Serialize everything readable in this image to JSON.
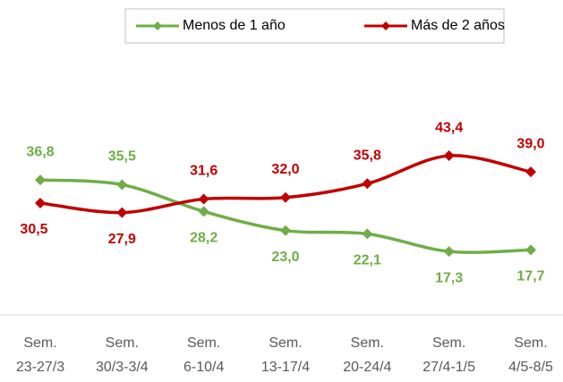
{
  "chart_data": {
    "type": "line",
    "categories": [
      "Sem. 23-27/3",
      "Sem. 30/3-3/4",
      "Sem. 6-10/4",
      "Sem. 13-17/4",
      "Sem. 20-24/4",
      "Sem. 27/4-1/5",
      "Sem. 4/5-8/5"
    ],
    "series": [
      {
        "name": "Menos de 1 año",
        "color": "#70ad47",
        "values": [
          36.8,
          35.5,
          28.2,
          23.0,
          22.1,
          17.3,
          17.7
        ],
        "value_labels": [
          "36,8",
          "35,5",
          "28,2",
          "23,0",
          "22,1",
          "17,3",
          "17,7"
        ]
      },
      {
        "name": "Más de 2 años",
        "color": "#c00000",
        "values": [
          30.5,
          27.9,
          31.6,
          32.0,
          35.8,
          43.4,
          39.0
        ],
        "value_labels": [
          "30,5",
          "27,9",
          "31,6",
          "32,0",
          "35,8",
          "43,4",
          "39,0"
        ]
      }
    ],
    "ylim": [
      0,
      50
    ],
    "legend": "top",
    "smooth": true
  }
}
